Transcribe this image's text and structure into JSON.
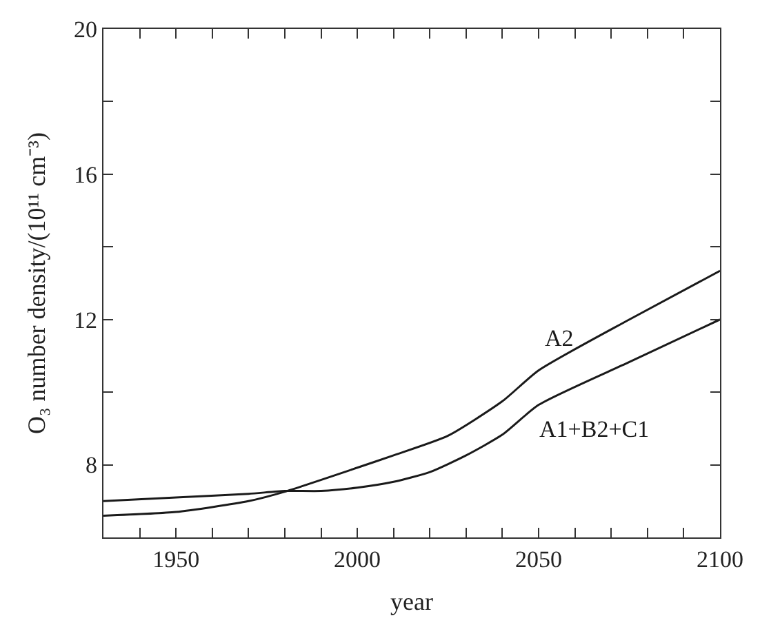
{
  "chart_data": {
    "type": "line",
    "xlabel": "year",
    "ylabel": "O₃ number density/(10¹¹ cm⁻³)",
    "x": [
      1930,
      1950,
      1970,
      1980,
      2000,
      2010,
      2025,
      2040,
      2050,
      2075,
      2100
    ],
    "series": [
      {
        "name": "A2",
        "color": "#1a1a1a",
        "values": [
          6.6,
          6.7,
          7.0,
          7.26,
          7.92,
          8.26,
          8.8,
          9.75,
          10.6,
          12.0,
          13.34
        ]
      },
      {
        "name": "A1+B2+C1",
        "color": "#1a1a1a",
        "x": [
          1930,
          1950,
          1970,
          1980,
          1990,
          2000,
          2010,
          2020,
          2030,
          2040,
          2050,
          2075,
          2100
        ],
        "values": [
          7.0,
          7.1,
          7.2,
          7.28,
          7.28,
          7.37,
          7.53,
          7.8,
          8.26,
          8.83,
          9.65,
          10.83,
          12.0
        ]
      }
    ],
    "xlim": [
      1930,
      2100
    ],
    "xticks": [
      {
        "value": 1930,
        "label": null
      },
      {
        "value": 1940,
        "label": null
      },
      1950,
      {
        "value": 1960,
        "label": null
      },
      {
        "value": 1970,
        "label": null
      },
      {
        "value": 1980,
        "label": null
      },
      {
        "value": 1990,
        "label": null
      },
      2000,
      {
        "value": 2010,
        "label": null
      },
      {
        "value": 2020,
        "label": null
      },
      {
        "value": 2030,
        "label": null
      },
      {
        "value": 2040,
        "label": null
      },
      2050,
      {
        "value": 2060,
        "label": null
      },
      {
        "value": 2070,
        "label": null
      },
      {
        "value": 2080,
        "label": null
      },
      {
        "value": 2090,
        "label": null
      },
      2100
    ],
    "ylim": [
      6,
      20
    ],
    "yticks": [
      {
        "value": 6,
        "label": null
      },
      8,
      {
        "value": 10,
        "label": null
      },
      12,
      {
        "value": 14,
        "label": null
      },
      16,
      {
        "value": 18,
        "label": null
      },
      20
    ],
    "legend": false,
    "marker": "none",
    "line_style": "solid"
  }
}
